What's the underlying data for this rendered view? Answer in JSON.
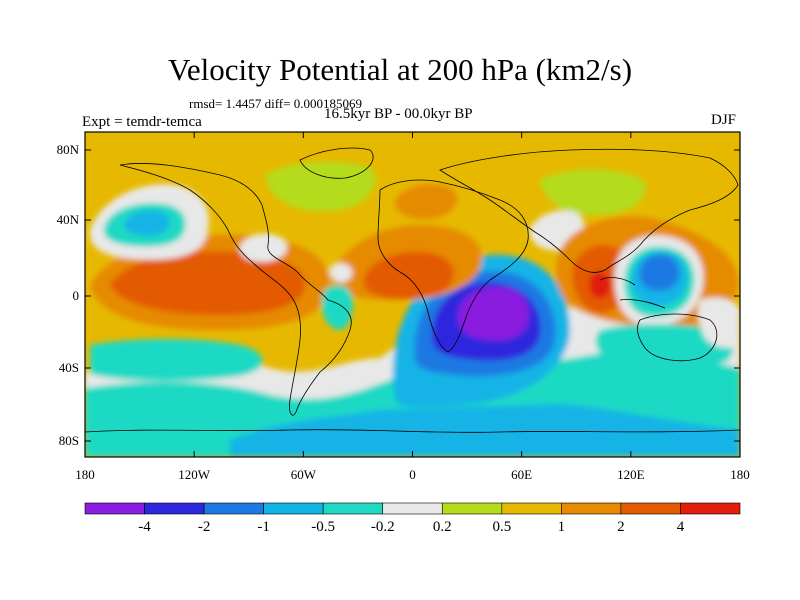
{
  "title": "Velocity Potential at 200 hPa (km2/s)",
  "stats_line": "rmsd= 1.4457 diff= 0.000185069",
  "experiment": "Expt = temdr-temca",
  "period": "16.5kyr BP - 00.0kyr BP",
  "season": "DJF",
  "lat_ticks": [
    "80N",
    "40N",
    "0",
    "40S",
    "80S"
  ],
  "lon_ticks": [
    "180",
    "120W",
    "60W",
    "0",
    "60E",
    "120E",
    "180"
  ],
  "colorbar": {
    "colors": [
      "#8a1de0",
      "#2d28de",
      "#1e79e3",
      "#12b4e6",
      "#1fd9c4",
      "#e8e8e8",
      "#b4dc1e",
      "#e6b900",
      "#e68a00",
      "#e35a00",
      "#e01e0a"
    ],
    "labels": [
      "-4",
      "-2",
      "-1",
      "-0.5",
      "-0.2",
      "0.2",
      "0.5",
      "1",
      "2",
      "4"
    ]
  },
  "background_color": "#e6b900"
}
